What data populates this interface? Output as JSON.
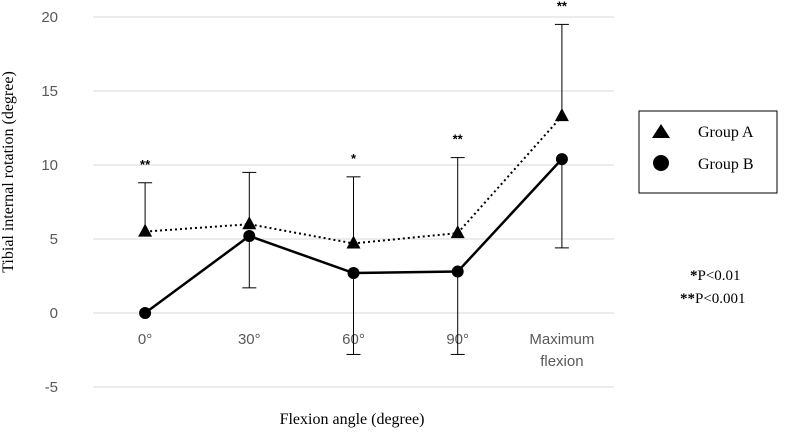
{
  "chart_data": {
    "type": "line",
    "title": "",
    "xlabel": "Flexion angle (degree)",
    "ylabel": "Tibial internal rotation (degree)",
    "ylim": [
      -5,
      20
    ],
    "yticks": [
      "20",
      "15",
      "10",
      "5",
      "0",
      "-5"
    ],
    "ytick_values": [
      20,
      15,
      10,
      5,
      0,
      -5
    ],
    "categories": [
      "0°",
      "30°",
      "60°",
      "90°",
      "Maximum flexion"
    ],
    "category_lines": [
      [
        "0°"
      ],
      [
        "30°"
      ],
      [
        "60°"
      ],
      [
        "90°"
      ],
      [
        "Maximum",
        "flexion"
      ]
    ],
    "series": [
      {
        "name": "Group A",
        "marker": "triangle",
        "line_style": "dotted",
        "values": [
          5.5,
          6.0,
          4.7,
          5.4,
          13.3
        ],
        "error_upper": [
          8.8,
          9.5,
          9.2,
          10.5,
          19.5
        ]
      },
      {
        "name": "Group B",
        "marker": "circle",
        "line_style": "solid",
        "values": [
          0,
          5.2,
          2.7,
          2.8,
          10.4
        ],
        "error_lower": [
          0,
          1.7,
          -2.8,
          -2.8,
          4.4
        ]
      }
    ],
    "significance": [
      "**",
      "",
      "*",
      "**",
      "**"
    ],
    "notes": [
      {
        "mark": "*",
        "text": "P<0.01"
      },
      {
        "mark": "**",
        "text": "P<0.001"
      }
    ],
    "legend_position": "right",
    "grid": "horizontal"
  }
}
